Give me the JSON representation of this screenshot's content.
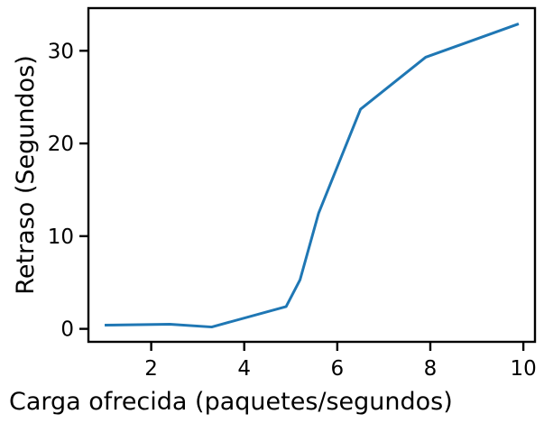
{
  "chart_data": {
    "type": "line",
    "xlabel": "Carga ofrecida (paquetes/segundos)",
    "ylabel": "Retraso (Segundos)",
    "xlim": [
      0.65,
      10.25
    ],
    "ylim": [
      -1.4,
      34.6
    ],
    "xticks": [
      2,
      4,
      6,
      8,
      10
    ],
    "yticks": [
      0,
      10,
      20,
      30
    ],
    "grid": false,
    "series": [
      {
        "color": "#1f77b4",
        "x": [
          1.0,
          2.4,
          3.3,
          4.9,
          5.2,
          5.6,
          6.5,
          7.9,
          9.9
        ],
        "y": [
          0.4,
          0.5,
          0.2,
          2.4,
          5.3,
          12.5,
          23.7,
          29.3,
          32.9
        ]
      }
    ]
  }
}
